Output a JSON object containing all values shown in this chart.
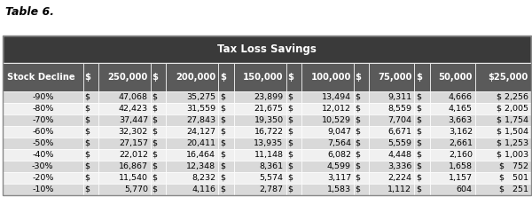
{
  "title": "Table 6.",
  "table_title": "Tax Loss Savings",
  "col_headers": [
    "Stock Decline",
    "$",
    "250,000",
    "$",
    "200,000",
    "$",
    "150,000",
    "$",
    "100,000",
    "$",
    "75,000",
    "$",
    "50,000",
    "$25,000"
  ],
  "rows": [
    [
      "-90%",
      "$",
      "47,068",
      "$",
      "35,275",
      "$",
      "23,899",
      "$",
      "13,494",
      "$",
      "9,311",
      "$",
      "4,666",
      "$ 2,256"
    ],
    [
      "-80%",
      "$",
      "42,423",
      "$",
      "31,559",
      "$",
      "21,675",
      "$",
      "12,012",
      "$",
      "8,559",
      "$",
      "4,165",
      "$ 2,005"
    ],
    [
      "-70%",
      "$",
      "37,447",
      "$",
      "27,843",
      "$",
      "19,350",
      "$",
      "10,529",
      "$",
      "7,704",
      "$",
      "3,663",
      "$ 1,754"
    ],
    [
      "-60%",
      "$",
      "32,302",
      "$",
      "24,127",
      "$",
      "16,722",
      "$",
      "9,047",
      "$",
      "6,671",
      "$",
      "3,162",
      "$ 1,504"
    ],
    [
      "-50%",
      "$",
      "27,157",
      "$",
      "20,411",
      "$",
      "13,935",
      "$",
      "7,564",
      "$",
      "5,559",
      "$",
      "2,661",
      "$ 1,253"
    ],
    [
      "-40%",
      "$",
      "22,012",
      "$",
      "16,464",
      "$",
      "11,148",
      "$",
      "6,082",
      "$",
      "4,448",
      "$",
      "2,160",
      "$ 1,003"
    ],
    [
      "-30%",
      "$",
      "16,867",
      "$",
      "12,348",
      "$",
      "8,361",
      "$",
      "4,599",
      "$",
      "3,336",
      "$",
      "1,658",
      "$   752"
    ],
    [
      "-20%",
      "$",
      "11,540",
      "$",
      "8,232",
      "$",
      "5,574",
      "$",
      "3,117",
      "$",
      "2,224",
      "$",
      "1,157",
      "$   501"
    ],
    [
      "-10%",
      "$",
      "5,770",
      "$",
      "4,116",
      "$",
      "2,787",
      "$",
      "1,583",
      "$",
      "1,112",
      "$",
      "604",
      "$   251"
    ]
  ],
  "header_bg": "#5a5a5a",
  "subheader_bg": "#3a3a3a",
  "row_bg_odd": "#d9d9d9",
  "row_bg_even": "#f0f0f0",
  "header_text_color": "#ffffff",
  "row_text_color": "#000000",
  "title_text": "Table 6.",
  "figsize": [
    6.0,
    2.22
  ],
  "dpi": 100
}
